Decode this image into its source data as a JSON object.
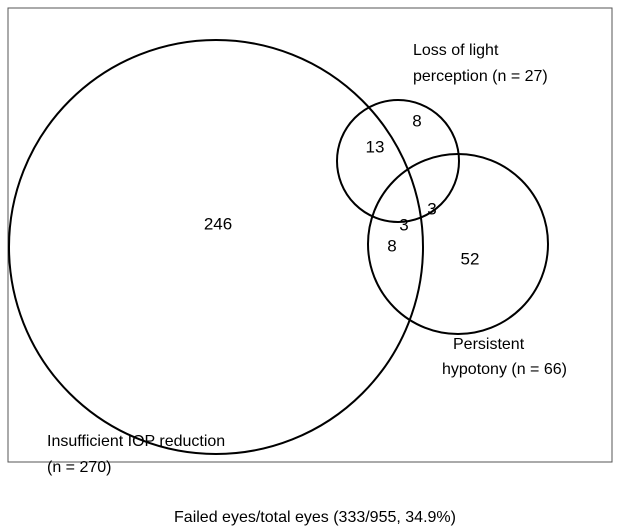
{
  "sets": [
    {
      "label_lines": [
        "Insufficient  IOP reduction",
        "(n = 270)"
      ]
    },
    {
      "label_lines": [
        "Loss of light",
        "perception (n = 27)"
      ]
    },
    {
      "label_lines": [
        "Persistent",
        "hypotony (n = 66)"
      ]
    }
  ],
  "regions": [
    {
      "count": 246
    },
    {
      "count": 13
    },
    {
      "count": 8
    },
    {
      "count": 3
    },
    {
      "count": 3
    },
    {
      "count": 8
    },
    {
      "count": 52
    }
  ],
  "caption": "Failed eyes/total eyes (333/955, 34.9%)"
}
